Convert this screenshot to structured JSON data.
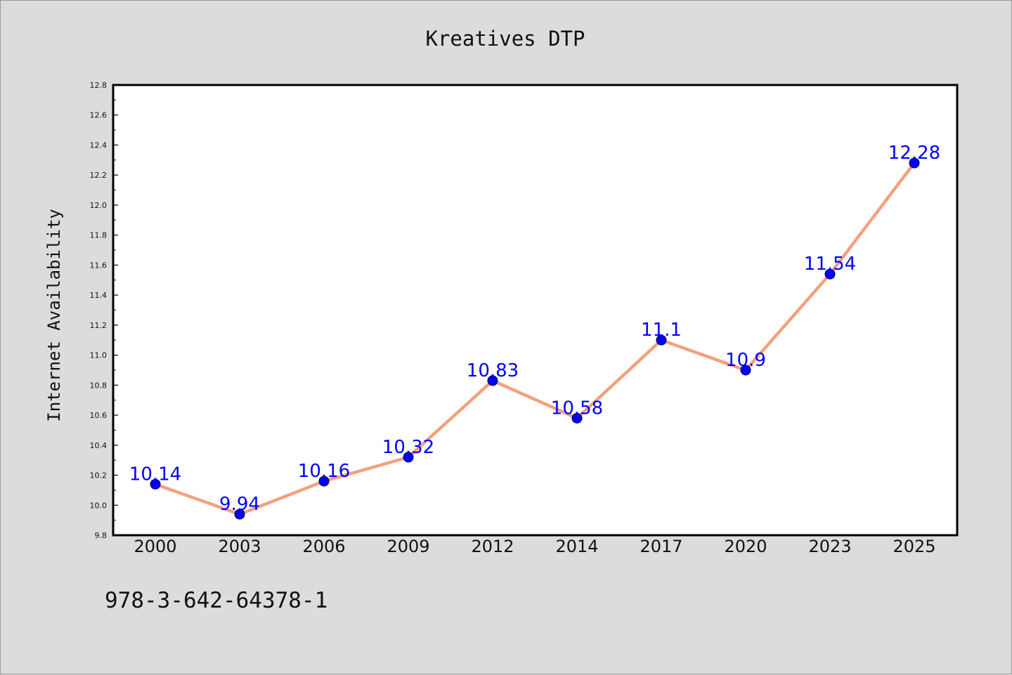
{
  "chart_data": {
    "type": "line",
    "title": "Kreatives DTP",
    "xlabel": "",
    "ylabel": "Internet Availability",
    "categories": [
      "2000",
      "2003",
      "2006",
      "2009",
      "2012",
      "2014",
      "2017",
      "2020",
      "2023",
      "2025"
    ],
    "series": [
      {
        "values": [
          10.14,
          9.94,
          10.16,
          10.32,
          10.83,
          10.58,
          11.1,
          10.9,
          11.54,
          12.28
        ],
        "labels": [
          "10.14",
          "9.94",
          "10.16",
          "10.32",
          "10.83",
          "10.58",
          "11.1",
          "10.9",
          "11.54",
          "12.28"
        ]
      }
    ],
    "ylim": [
      9.8,
      12.8
    ],
    "yticks": [
      "9.8",
      "10.0",
      "10.2",
      "10.4",
      "10.6",
      "10.8",
      "11.0",
      "11.2",
      "11.4",
      "11.6",
      "11.8",
      "12.0",
      "12.2",
      "12.4",
      "12.6",
      "12.8"
    ],
    "grid": false,
    "legend": "none",
    "colors": {
      "line": "#f4a07e",
      "marker": "#0000ff",
      "label": "#0000ff",
      "background": "#dcdcdc",
      "plot_area": "#ffffff"
    }
  },
  "footer": {
    "isbn": "978-3-642-64378-1"
  }
}
